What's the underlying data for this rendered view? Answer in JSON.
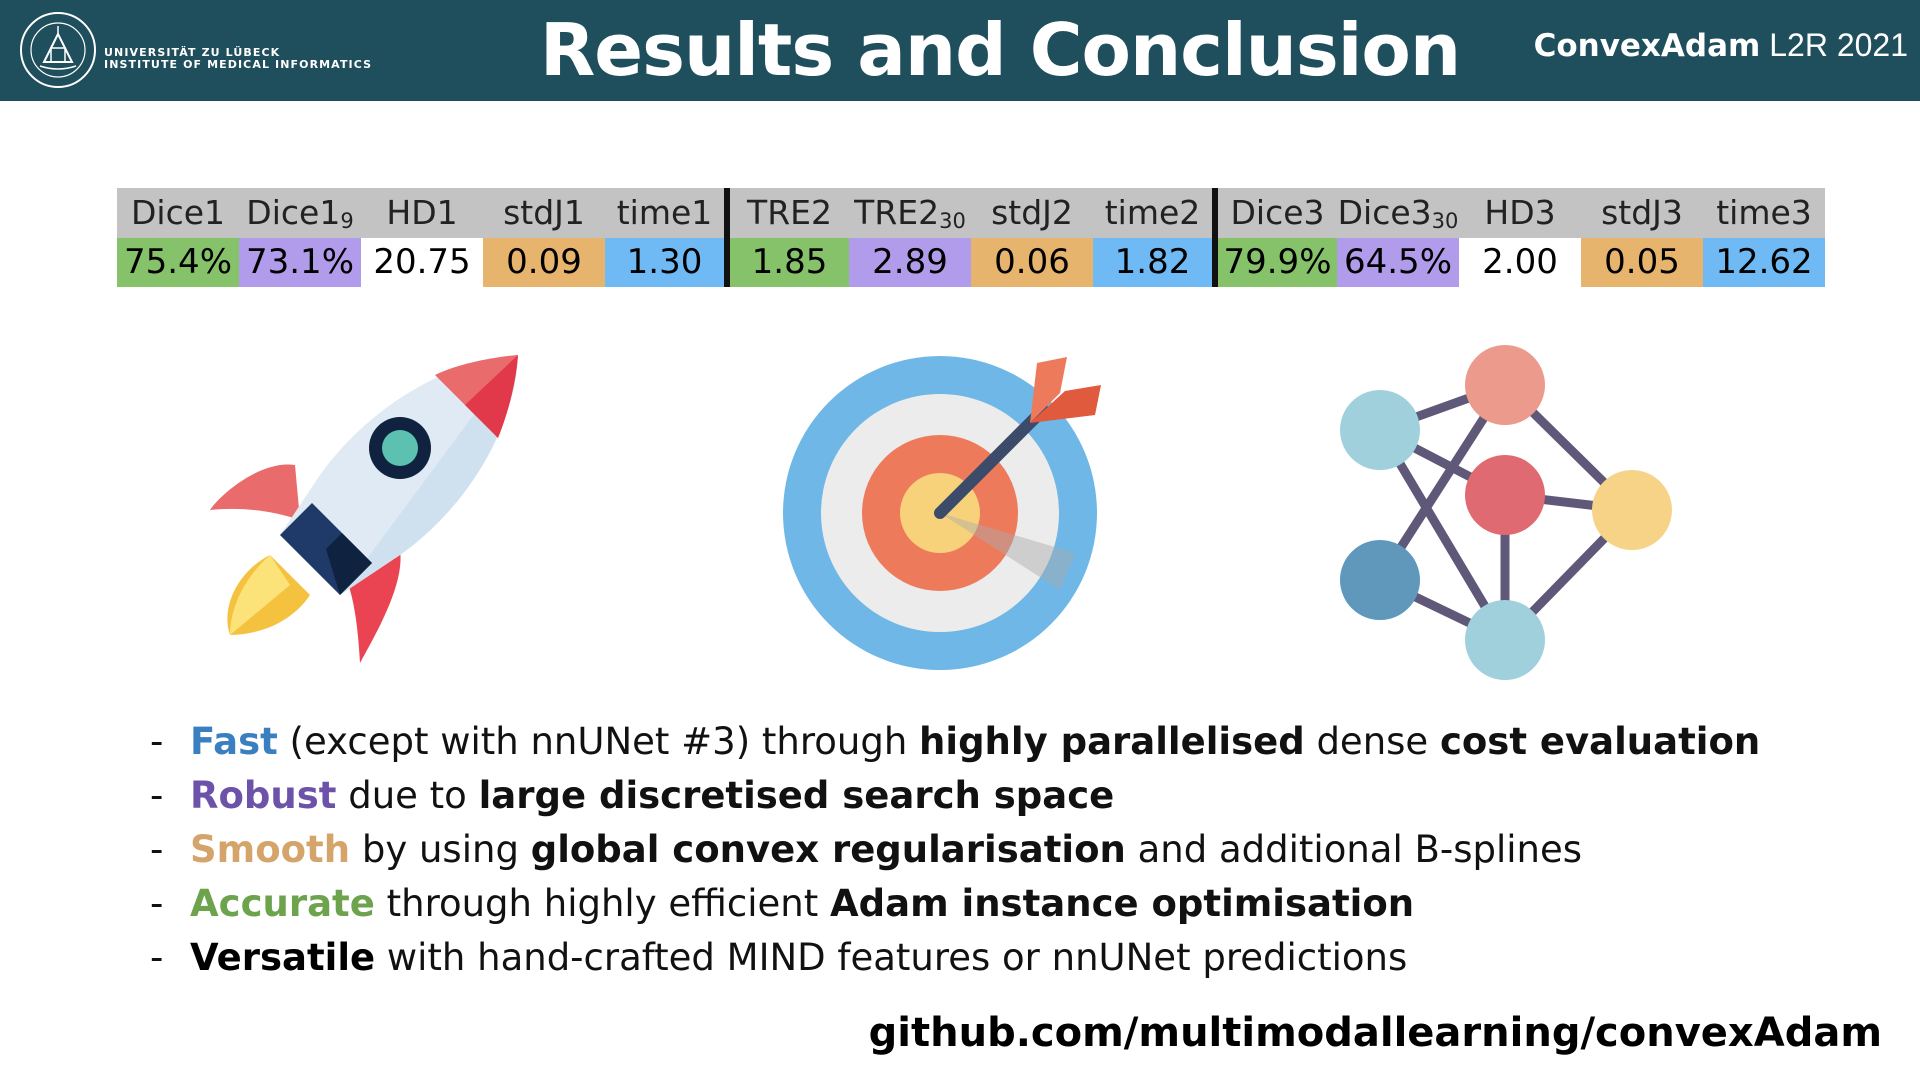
{
  "header": {
    "title": "Results and Conclusion",
    "university_line1": "UNIVERSITÄT ZU LÜBECK",
    "university_line2": "INSTITUTE OF MEDICAL INFORMATICS",
    "brand_bold": "ConvexAdam",
    "brand_rest": "L2R 2021",
    "logo_icon": "university-seal-icon"
  },
  "results_table": {
    "headers": [
      {
        "text": "Dice1",
        "sub": ""
      },
      {
        "text": "Dice1",
        "sub": "9"
      },
      {
        "text": "HD1",
        "sub": ""
      },
      {
        "text": "stdJ1",
        "sub": ""
      },
      {
        "text": "time1",
        "sub": ""
      },
      {
        "text": "TRE2",
        "sub": ""
      },
      {
        "text": "TRE2",
        "sub": "30"
      },
      {
        "text": "stdJ2",
        "sub": ""
      },
      {
        "text": "time2",
        "sub": ""
      },
      {
        "text": "Dice3",
        "sub": ""
      },
      {
        "text": "Dice3",
        "sub": "30"
      },
      {
        "text": "HD3",
        "sub": ""
      },
      {
        "text": "stdJ3",
        "sub": ""
      },
      {
        "text": "time3",
        "sub": ""
      }
    ],
    "values": [
      "75.4%",
      "73.1%",
      "20.75",
      "0.09",
      "1.30",
      "1.85",
      "2.89",
      "0.06",
      "1.82",
      "79.9%",
      "64.5%",
      "2.00",
      "0.05",
      "12.62"
    ],
    "colors": {
      "green": "#86c26a",
      "purple": "#b09cea",
      "white": "#ffffff",
      "orange": "#e7b46d",
      "blue": "#6fbaf5",
      "header_gray": "#c3c3c3"
    }
  },
  "icons": [
    "rocket-icon",
    "target-icon",
    "network-icon"
  ],
  "bullets": [
    {
      "dash": "-",
      "keyword": "Fast",
      "parts": [
        " (except with nnUNet #3) through ",
        "highly parallelised",
        " dense ",
        "cost evaluation"
      ]
    },
    {
      "dash": "-",
      "keyword": "Robust",
      "parts": [
        " due to ",
        "large discretised search space"
      ]
    },
    {
      "dash": "-",
      "keyword": "Smooth",
      "parts": [
        " by using ",
        "global convex regularisation",
        " and additional B-splines"
      ]
    },
    {
      "dash": "-",
      "keyword": "Accurate",
      "parts": [
        " through highly efficient ",
        "Adam instance optimisation"
      ]
    },
    {
      "dash": "-",
      "keyword": "Versatile",
      "parts": [
        " with hand-crafted MIND features or nnUNet predictions"
      ]
    }
  ],
  "keyword_colors": {
    "fast": "#3a80c0",
    "robust": "#6c52a8",
    "smooth": "#d4a46a",
    "accurate": "#6da34d",
    "versatile": "#000000"
  },
  "footer": {
    "github": "github.com/multimodallearning/convexAdam"
  }
}
